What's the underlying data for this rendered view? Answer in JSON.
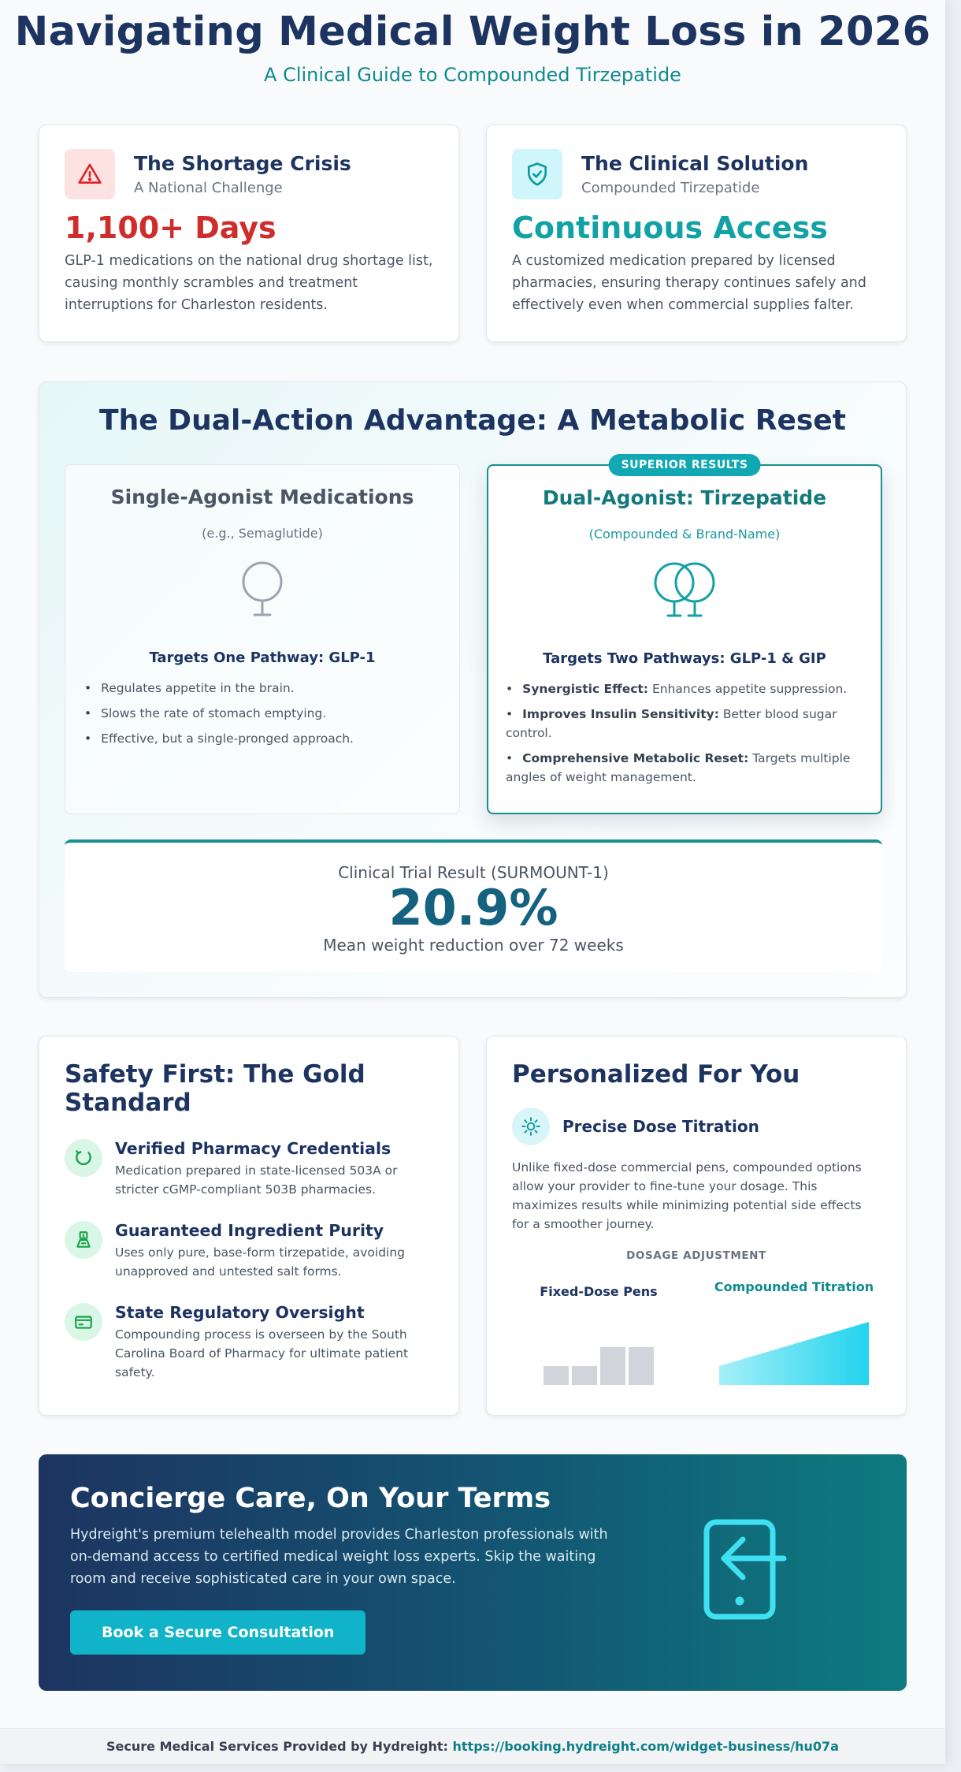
{
  "header": {
    "title": "Navigating Medical Weight Loss in 2026",
    "subtitle": "A Clinical Guide to Compounded Tirzepatide"
  },
  "shortage": {
    "title": "The Shortage Crisis",
    "subtitle": "A National Challenge",
    "stat": "1,100+ Days",
    "body": "GLP-1 medications on the national drug shortage list, causing monthly scrambles and treatment interruptions for Charleston residents."
  },
  "solution": {
    "title": "The Clinical Solution",
    "subtitle": "Compounded Tirzepatide",
    "stat": "Continuous Access",
    "body": "A customized medication prepared by licensed pharmacies, ensuring therapy continues safely and effectively even when commercial supplies falter."
  },
  "dual_action": {
    "title": "The Dual-Action Advantage: A Metabolic Reset",
    "single": {
      "title": "Single-Agonist Medications",
      "subtitle": "(e.g., Semaglutide)",
      "target": "Targets One Pathway: GLP-1",
      "points": [
        "Regulates appetite in the brain.",
        "Slows the rate of stomach emptying.",
        "Effective, but a single-pronged approach."
      ]
    },
    "dual": {
      "badge": "SUPERIOR RESULTS",
      "title": "Dual-Agonist: Tirzepatide",
      "subtitle": "(Compounded & Brand-Name)",
      "target": "Targets Two Pathways: GLP-1 & GIP",
      "points": [
        {
          "strong": "Synergistic Effect:",
          "text": " Enhances appetite suppression."
        },
        {
          "strong": "Improves Insulin Sensitivity:",
          "text": " Better blood sugar control."
        },
        {
          "strong": "Comprehensive Metabolic Reset:",
          "text": " Targets multiple angles of weight management."
        }
      ]
    },
    "trial": {
      "label": "Clinical Trial Result (SURMOUNT-1)",
      "value": "20.9%",
      "description": "Mean weight reduction over 72 weeks"
    }
  },
  "safety": {
    "title": "Safety First: The Gold Standard",
    "items": [
      {
        "title": "Verified Pharmacy Credentials",
        "desc": "Medication prepared in state-licensed 503A or stricter cGMP-compliant 503B pharmacies."
      },
      {
        "title": "Guaranteed Ingredient Purity",
        "desc": "Uses only pure, base-form tirzepatide, avoiding unapproved and untested salt forms."
      },
      {
        "title": "State Regulatory Oversight",
        "desc": "Compounding process is overseen by the South Carolina Board of Pharmacy for ultimate patient safety."
      }
    ]
  },
  "personalized": {
    "title": "Personalized For You",
    "feature_title": "Precise Dose Titration",
    "desc": "Unlike fixed-dose commercial pens, compounded options allow your provider to fine-tune your dosage. This maximizes results while minimizing potential side effects for a smoother journey.",
    "dosage_label": "DOSAGE ADJUSTMENT",
    "fixed_label": "Fixed-Dose Pens",
    "compounded_label": "Compounded Titration"
  },
  "concierge": {
    "title": "Concierge Care, On Your Terms",
    "desc": "Hydreight's premium telehealth model provides Charleston professionals with on-demand access to certified medical weight loss experts. Skip the waiting room and receive sophisticated care in your own space.",
    "button": "Book a Secure Consultation"
  },
  "footer": {
    "prefix": "Secure Medical Services Provided by Hydreight: ",
    "link": "https://booking.hydreight.com/widget-business/hu07a"
  },
  "colors": {
    "navy": "#1d3461",
    "teal": "#12a1a5",
    "red": "#d02c2c",
    "green_bg": "#daf6e6"
  }
}
